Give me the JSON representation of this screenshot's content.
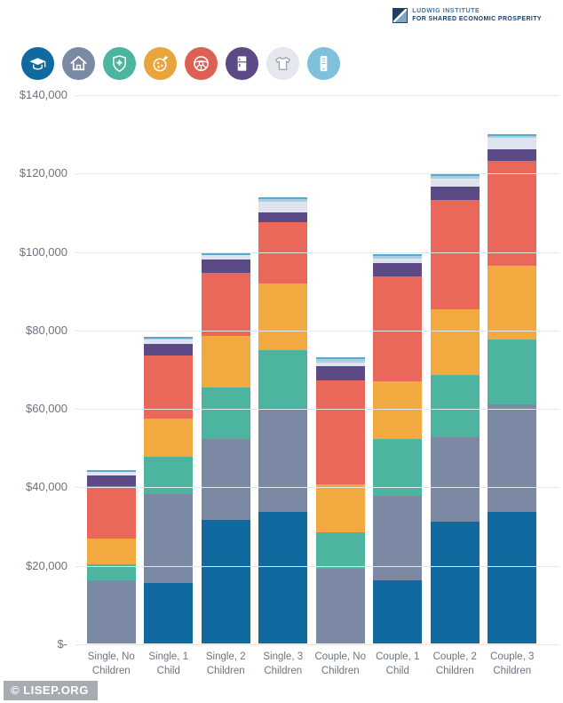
{
  "header": {
    "logo_line1": "LUDWIG INSTITUTE",
    "logo_line2": "FOR SHARED ECONOMIC PROSPERITY"
  },
  "footer": {
    "watermark": "© LISEP.ORG"
  },
  "legend_icons": [
    {
      "name": "graduation-cap",
      "category": "education",
      "circle_color": "#10699f"
    },
    {
      "name": "house",
      "category": "housing",
      "circle_color": "#7c89a4"
    },
    {
      "name": "shield-cross",
      "category": "healthcare",
      "circle_color": "#4db4a0"
    },
    {
      "name": "food-plate",
      "category": "food",
      "circle_color": "#e8a53c"
    },
    {
      "name": "steering-wheel",
      "category": "transportation",
      "circle_color": "#dd6054"
    },
    {
      "name": "refrigerator",
      "category": "household",
      "circle_color": "#5c4a86"
    },
    {
      "name": "t-shirt",
      "category": "clothing",
      "circle_color": "#e4e7ec"
    },
    {
      "name": "mobile-phone",
      "category": "technology",
      "circle_color": "#7fc0dc"
    }
  ],
  "chart_data": {
    "type": "bar",
    "stacked": true,
    "grid": true,
    "legend_position": "top-icons",
    "categories": [
      "Single, No Children",
      "Single, 1 Child",
      "Single, 2 Children",
      "Single, 3 Children",
      "Couple, No Children",
      "Couple, 1 Child",
      "Couple, 2 Children",
      "Couple, 3 Children"
    ],
    "series": [
      {
        "name": "education",
        "color": "#10699f",
        "values": [
          0,
          15500,
          31500,
          33500,
          0,
          16200,
          31000,
          33500
        ]
      },
      {
        "name": "housing",
        "color": "#7c89a4",
        "values": [
          16000,
          22500,
          20500,
          26500,
          19000,
          21500,
          21500,
          27500
        ]
      },
      {
        "name": "healthcare",
        "color": "#4db4a0",
        "values": [
          4200,
          9500,
          13200,
          14700,
          9400,
          14400,
          15900,
          16400
        ]
      },
      {
        "name": "food",
        "color": "#f2a940",
        "values": [
          6600,
          9800,
          13200,
          17000,
          12100,
          14700,
          16900,
          18800
        ]
      },
      {
        "name": "transportation",
        "color": "#ea685a",
        "values": [
          13400,
          16200,
          16000,
          15700,
          26600,
          26800,
          27700,
          26800
        ]
      },
      {
        "name": "household",
        "color": "#5c4a86",
        "values": [
          2600,
          2800,
          3400,
          2500,
          3600,
          3400,
          3400,
          3000
        ]
      },
      {
        "name": "clothing",
        "color": "#dde4ed",
        "values": [
          900,
          1200,
          1200,
          2800,
          1000,
          1100,
          2200,
          3000
        ]
      },
      {
        "name": "technology",
        "color": "#a8cfe2",
        "values": [
          900,
          1200,
          1000,
          1500,
          1800,
          1500,
          1400,
          1300
        ]
      }
    ],
    "totals": [
      44600,
      78700,
      100000,
      114200,
      73500,
      99600,
      120000,
      130300
    ],
    "ylim": [
      0,
      140000
    ],
    "yticks": [
      {
        "value": 140000,
        "label": "$140,000"
      },
      {
        "value": 120000,
        "label": "$120,000"
      },
      {
        "value": 100000,
        "label": "$100,000"
      },
      {
        "value": 80000,
        "label": "$80,000"
      },
      {
        "value": 60000,
        "label": "$60,000"
      },
      {
        "value": 40000,
        "label": "$40,000"
      },
      {
        "value": 20000,
        "label": "$20,000"
      },
      {
        "value": 0,
        "label": "$-"
      }
    ]
  }
}
